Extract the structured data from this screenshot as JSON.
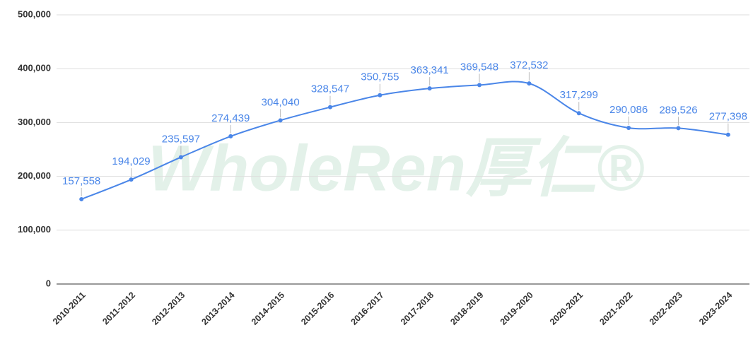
{
  "chart_data": {
    "type": "line",
    "watermark": "WholeRen厚仁®",
    "categories": [
      "2010-2011",
      "2011-2012",
      "2012-2013",
      "2013-2014",
      "2014-2015",
      "2015-2016",
      "2016-2017",
      "2017-2018",
      "2018-2019",
      "2019-2020",
      "2020-2021",
      "2021-2022",
      "2022-2023",
      "2023-2024"
    ],
    "series": [
      {
        "color": "#4a86e8",
        "values": [
          157558,
          194029,
          235597,
          274439,
          304040,
          328547,
          350755,
          363341,
          369548,
          372532,
          317299,
          290086,
          289526,
          277398
        ],
        "value_labels": [
          "157,558",
          "194,029",
          "235,597",
          "274,439",
          "304,040",
          "328,547",
          "350,755",
          "363,341",
          "369,548",
          "372,532",
          "317,299",
          "290,086",
          "289,526",
          "277,398"
        ]
      }
    ],
    "ylim": [
      0,
      500000
    ],
    "yticks": [
      0,
      {
        "value": 100000,
        "label": "100,000"
      },
      {
        "value": 200000,
        "label": "200,000"
      },
      {
        "value": 300000,
        "label": "300,000"
      },
      {
        "value": 400000,
        "label": "400,000"
      },
      {
        "value": 500000,
        "label": "500,000"
      }
    ],
    "grid": true
  }
}
